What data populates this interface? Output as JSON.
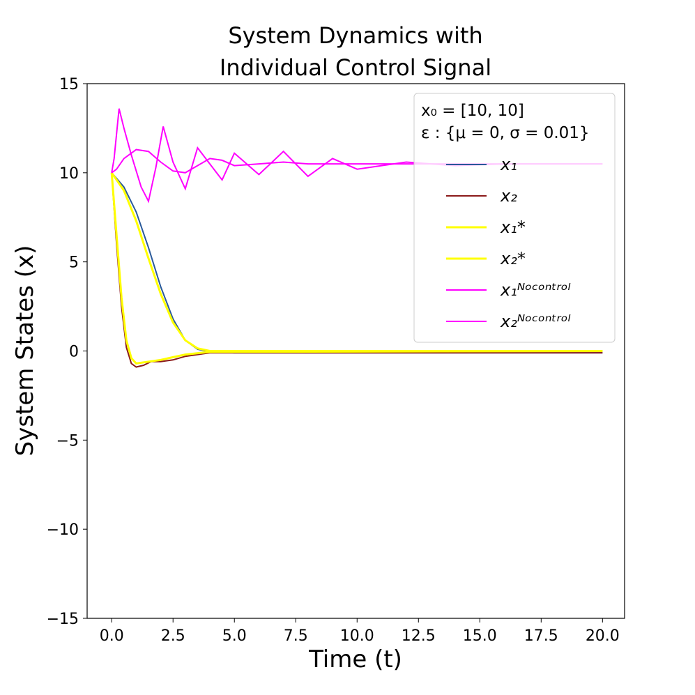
{
  "chart_data": {
    "type": "line",
    "title_lines": [
      "System Dynamics with",
      "Individual Control Signal"
    ],
    "xlabel": "Time (t)",
    "ylabel": "System States (x)",
    "xlim": [
      -1,
      20.9
    ],
    "ylim": [
      -15,
      15
    ],
    "x_ticks": [
      "0.0",
      "2.5",
      "5.0",
      "7.5",
      "10.0",
      "12.5",
      "15.0",
      "17.5",
      "20.0"
    ],
    "x_tick_values": [
      0,
      2.5,
      5,
      7.5,
      10,
      12.5,
      15,
      17.5,
      20
    ],
    "y_ticks": [
      "15",
      "10",
      "5",
      "0",
      "−5",
      "−10",
      "−15"
    ],
    "y_tick_values": [
      15,
      10,
      5,
      0,
      -5,
      -10,
      -15
    ],
    "grid": false,
    "legend": {
      "placement": "top-right",
      "note_lines": [
        "x₀ = [10, 10]",
        "ε : {μ = 0, σ = 0.01}"
      ],
      "entries": [
        {
          "label": "x₁",
          "color": "#2a5a9a"
        },
        {
          "label": "x₂",
          "color": "#8b1a1a"
        },
        {
          "label": "x₁*",
          "color": "#ffff00"
        },
        {
          "label": "x₂*",
          "color": "#ffff00"
        },
        {
          "label": "x₁ᴺᵒᶜᵒⁿᵗʳᵒˡ",
          "color": "#ff00ff"
        },
        {
          "label": "x₂ᴺᵒᶜᵒⁿᵗʳᵒˡ",
          "color": "#ff00ff"
        }
      ]
    },
    "series": [
      {
        "name": "x1",
        "color": "#2a5a9a",
        "x": [
          0,
          0.5,
          1,
          1.5,
          2,
          2.5,
          3,
          3.5,
          4,
          5,
          20
        ],
        "y": [
          10,
          9.2,
          7.8,
          5.8,
          3.6,
          1.8,
          0.6,
          0.1,
          -0.05,
          -0.1,
          -0.1
        ]
      },
      {
        "name": "x2",
        "color": "#8b1a1a",
        "x": [
          0,
          0.2,
          0.4,
          0.6,
          0.8,
          1,
          1.3,
          1.6,
          2,
          2.5,
          3,
          4,
          20
        ],
        "y": [
          10,
          6,
          2.5,
          0.2,
          -0.7,
          -0.9,
          -0.8,
          -0.6,
          -0.6,
          -0.5,
          -0.3,
          -0.1,
          -0.1
        ]
      },
      {
        "name": "x1*",
        "color": "#ffff00",
        "x": [
          0,
          0.5,
          1,
          1.5,
          2,
          2.5,
          3,
          3.5,
          4,
          5,
          20
        ],
        "y": [
          10,
          9,
          7.3,
          5.2,
          3.2,
          1.6,
          0.6,
          0.15,
          0,
          0,
          0
        ]
      },
      {
        "name": "x2*",
        "color": "#ffff00",
        "x": [
          0,
          0.2,
          0.4,
          0.6,
          0.8,
          1,
          1.5,
          2,
          2.5,
          3,
          4,
          20
        ],
        "y": [
          10,
          6.5,
          3,
          0.6,
          -0.4,
          -0.7,
          -0.6,
          -0.5,
          -0.35,
          -0.2,
          -0.05,
          0
        ]
      },
      {
        "name": "x1 NoControl",
        "color": "#ff00ff",
        "x": [
          0,
          0.1,
          0.3,
          0.5,
          0.8,
          1.2,
          1.5,
          1.8,
          2.1,
          2.5,
          3,
          3.5,
          4,
          4.5,
          5,
          6,
          7,
          8,
          9,
          10,
          12,
          14,
          16,
          18,
          20
        ],
        "y": [
          10,
          10.8,
          13.6,
          12.5,
          11,
          9.2,
          8.4,
          10.3,
          12.6,
          10.6,
          9.1,
          11.4,
          10.5,
          9.6,
          11.1,
          9.9,
          11.2,
          9.8,
          10.8,
          10.2,
          10.6,
          10.4,
          10.5,
          10.5,
          10.5
        ]
      },
      {
        "name": "x2 NoControl",
        "color": "#ff00ff",
        "x": [
          0,
          0.2,
          0.5,
          1,
          1.5,
          2,
          2.5,
          3,
          3.5,
          4,
          4.5,
          5,
          6,
          7,
          8,
          10,
          12,
          14,
          16,
          18,
          20
        ],
        "y": [
          10,
          10.2,
          10.8,
          11.3,
          11.2,
          10.6,
          10.1,
          10,
          10.4,
          10.8,
          10.7,
          10.4,
          10.5,
          10.6,
          10.5,
          10.5,
          10.5,
          10.5,
          10.5,
          10.5,
          10.5
        ]
      }
    ]
  }
}
